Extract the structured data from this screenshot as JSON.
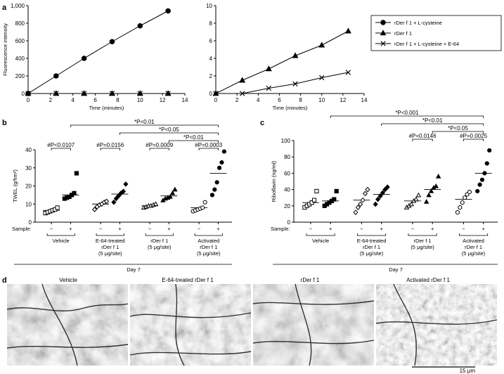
{
  "panel_labels": {
    "a": "a",
    "b": "b",
    "c": "c",
    "d": "d"
  },
  "chart_data": [
    {
      "id": "a-left",
      "type": "line",
      "ylabel": "Fluorescence intensity",
      "xlabel": "Time (minutes)",
      "xlim": [
        0,
        14
      ],
      "ylim": [
        0,
        1000
      ],
      "xticks": [
        "0",
        "2",
        "4",
        "6",
        "8",
        "10",
        "12",
        "14"
      ],
      "yticks": [
        "0",
        "200",
        "400",
        "600",
        "800",
        "1,000"
      ],
      "series": [
        {
          "name": "rDer f 1 + L-cysteine",
          "marker": "circle",
          "x": [
            0,
            2.5,
            5,
            7.5,
            10,
            12.5
          ],
          "y": [
            0,
            200,
            400,
            590,
            770,
            940
          ]
        },
        {
          "name": "rDer f 1",
          "marker": "triangle",
          "x": [
            0,
            2.5,
            5,
            7.5,
            10,
            12.5
          ],
          "y": [
            0,
            0,
            0,
            0,
            0,
            0
          ]
        },
        {
          "name": "rDer f 1 + L-cysteine + E-64",
          "marker": "cross",
          "x": [
            0,
            2.5,
            5,
            7.5,
            10,
            12.5
          ],
          "y": [
            0,
            0,
            0,
            0,
            0,
            0
          ]
        }
      ]
    },
    {
      "id": "a-right",
      "type": "line",
      "ylabel": "",
      "xlabel": "Time (minutes)",
      "xlim": [
        0,
        14
      ],
      "ylim": [
        0,
        10
      ],
      "xticks": [
        "0",
        "2",
        "4",
        "6",
        "8",
        "10",
        "12",
        "14"
      ],
      "yticks": [
        "0",
        "2",
        "4",
        "6",
        "8",
        "10"
      ],
      "series": [
        {
          "name": "rDer f 1",
          "marker": "triangle",
          "x": [
            0,
            2.5,
            5,
            7.5,
            10,
            12.5
          ],
          "y": [
            0,
            1.5,
            2.8,
            4.3,
            5.5,
            7.1
          ]
        },
        {
          "name": "rDer f 1 + L-cysteine + E-64",
          "marker": "cross",
          "x": [
            0,
            2.5,
            5,
            7.5,
            10,
            12.5
          ],
          "y": [
            0,
            0,
            0.6,
            1.1,
            1.8,
            2.4
          ]
        }
      ]
    },
    {
      "id": "b",
      "type": "scatter",
      "ylabel": "TWEL (g/hm²)",
      "ylim": [
        0,
        40
      ],
      "yticks": [
        "0",
        "10",
        "20",
        "30",
        "40"
      ],
      "sample_label": "Sample:",
      "day_label": "Day 7",
      "groups": [
        {
          "label": [
            "Vehicle"
          ],
          "minus": "−",
          "plus": "+",
          "minus_marker": "open-square",
          "plus_marker": "filled-square",
          "minus_values": [
            5,
            5.5,
            6,
            6.5,
            7,
            8
          ],
          "minus_mean": 6.5,
          "plus_values": [
            13,
            13.5,
            14,
            15,
            16,
            27
          ],
          "plus_mean": 15
        },
        {
          "label": [
            "E-64-treated",
            "rDer f 1",
            "(5 μg/site)"
          ],
          "minus": "−",
          "plus": "+",
          "minus_marker": "open-diamond",
          "plus_marker": "filled-diamond",
          "minus_values": [
            7,
            8.5,
            9.5,
            10,
            11,
            11.5
          ],
          "minus_mean": 10,
          "plus_values": [
            11,
            13,
            14.5,
            16,
            17,
            21
          ],
          "plus_mean": 15.5
        },
        {
          "label": [
            "rDer f 1",
            "(5 μg/site)"
          ],
          "minus": "−",
          "plus": "+",
          "minus_marker": "open-triangle",
          "plus_marker": "filled-triangle",
          "minus_values": [
            8,
            8.5,
            9,
            9,
            9.5,
            10
          ],
          "minus_mean": 9,
          "plus_values": [
            12,
            13,
            13.5,
            14,
            16,
            18
          ],
          "plus_mean": 14.5
        },
        {
          "label": [
            "Activated",
            "rDer f 1",
            "(5 μg/site)"
          ],
          "minus": "−",
          "plus": "+",
          "minus_marker": "open-circle",
          "plus_marker": "filled-circle",
          "minus_values": [
            6,
            6.5,
            7,
            7.5,
            8,
            11
          ],
          "minus_mean": 8,
          "plus_values": [
            15,
            18,
            22,
            30,
            33,
            39
          ],
          "plus_mean": 27
        }
      ],
      "annotations": [
        {
          "text": "#P<0.0107",
          "from": [
            0,
            "minus"
          ],
          "to": [
            0,
            "plus"
          ],
          "level": 0
        },
        {
          "text": "#P=0.0156",
          "from": [
            1,
            "minus"
          ],
          "to": [
            1,
            "plus"
          ],
          "level": 0
        },
        {
          "text": "#P=0.0009",
          "from": [
            2,
            "minus"
          ],
          "to": [
            2,
            "plus"
          ],
          "level": 0
        },
        {
          "text": "#P=0.0003",
          "from": [
            3,
            "minus"
          ],
          "to": [
            3,
            "plus"
          ],
          "level": 0
        },
        {
          "text": "*P<0.01",
          "from": [
            2,
            "plus"
          ],
          "to": [
            3,
            "plus"
          ],
          "level": 1
        },
        {
          "text": "*P<0.05",
          "from": [
            1,
            "plus"
          ],
          "to": [
            3,
            "plus"
          ],
          "level": 2
        },
        {
          "text": "*P<0.01",
          "from": [
            0,
            "plus"
          ],
          "to": [
            3,
            "plus"
          ],
          "level": 3
        }
      ]
    },
    {
      "id": "c",
      "type": "scatter",
      "ylabel": "Riboflavin (ng/ml)",
      "ylim": [
        0,
        100
      ],
      "yticks": [
        "0",
        "20",
        "40",
        "60",
        "80",
        "100"
      ],
      "sample_label": "Sample:",
      "day_label": "Day 7",
      "groups": [
        {
          "label": [
            "Vehicle"
          ],
          "minus": "−",
          "plus": "+",
          "minus_marker": "open-square",
          "plus_marker": "filled-square",
          "minus_values": [
            18,
            20,
            22,
            24,
            27,
            38
          ],
          "minus_mean": 24,
          "plus_values": [
            20,
            22,
            24,
            26,
            28,
            38
          ],
          "plus_mean": 26
        },
        {
          "label": [
            "E-64-treated",
            "rDer f 1",
            "(5 μg/site)"
          ],
          "minus": "−",
          "plus": "+",
          "minus_marker": "open-diamond",
          "plus_marker": "filled-diamond",
          "minus_values": [
            12,
            18,
            22,
            27,
            35,
            40
          ],
          "minus_mean": 27,
          "plus_values": [
            22,
            28,
            32,
            36,
            40,
            43
          ],
          "plus_mean": 34
        },
        {
          "label": [
            "rDer f 1",
            "(5 μg/site)"
          ],
          "minus": "−",
          "plus": "+",
          "minus_marker": "open-triangle",
          "plus_marker": "filled-triangle",
          "minus_values": [
            18,
            20,
            22,
            26,
            28,
            33
          ],
          "minus_mean": 26,
          "plus_values": [
            25,
            33,
            38,
            42,
            44,
            56
          ],
          "plus_mean": 40
        },
        {
          "label": [
            "Activated",
            "rDer f 1",
            "(5 μg/site)"
          ],
          "minus": "−",
          "plus": "+",
          "minus_marker": "open-circle",
          "plus_marker": "filled-circle",
          "minus_values": [
            12,
            18,
            24,
            30,
            34,
            37
          ],
          "minus_mean": 28,
          "plus_values": [
            38,
            46,
            52,
            60,
            72,
            88
          ],
          "plus_mean": 60
        }
      ],
      "annotations": [
        {
          "text": "#P=0.0146",
          "from": [
            2,
            "minus"
          ],
          "to": [
            2,
            "plus"
          ],
          "level": 0
        },
        {
          "text": "#P=0.0025",
          "from": [
            3,
            "minus"
          ],
          "to": [
            3,
            "plus"
          ],
          "level": 0
        },
        {
          "text": "*P<0.05",
          "from": [
            2,
            "plus"
          ],
          "to": [
            3,
            "plus"
          ],
          "level": 1
        },
        {
          "text": "*P<0.01",
          "from": [
            1,
            "plus"
          ],
          "to": [
            3,
            "plus"
          ],
          "level": 2
        },
        {
          "text": "*P<0.001",
          "from": [
            0,
            "plus"
          ],
          "to": [
            3,
            "plus"
          ],
          "level": 3
        }
      ]
    }
  ],
  "legend": [
    {
      "label": "rDer f 1 + L-cysteine",
      "marker": "circle"
    },
    {
      "label": "rDer f 1",
      "marker": "triangle"
    },
    {
      "label": "rDer f 1 + L-cysteine + E-64",
      "marker": "cross"
    }
  ],
  "photos": {
    "titles": [
      "Vehicle",
      "E-64-treated rDer f 1",
      "rDer f 1",
      "Activated rDer f 1"
    ],
    "scale_bar": "15 μm"
  }
}
